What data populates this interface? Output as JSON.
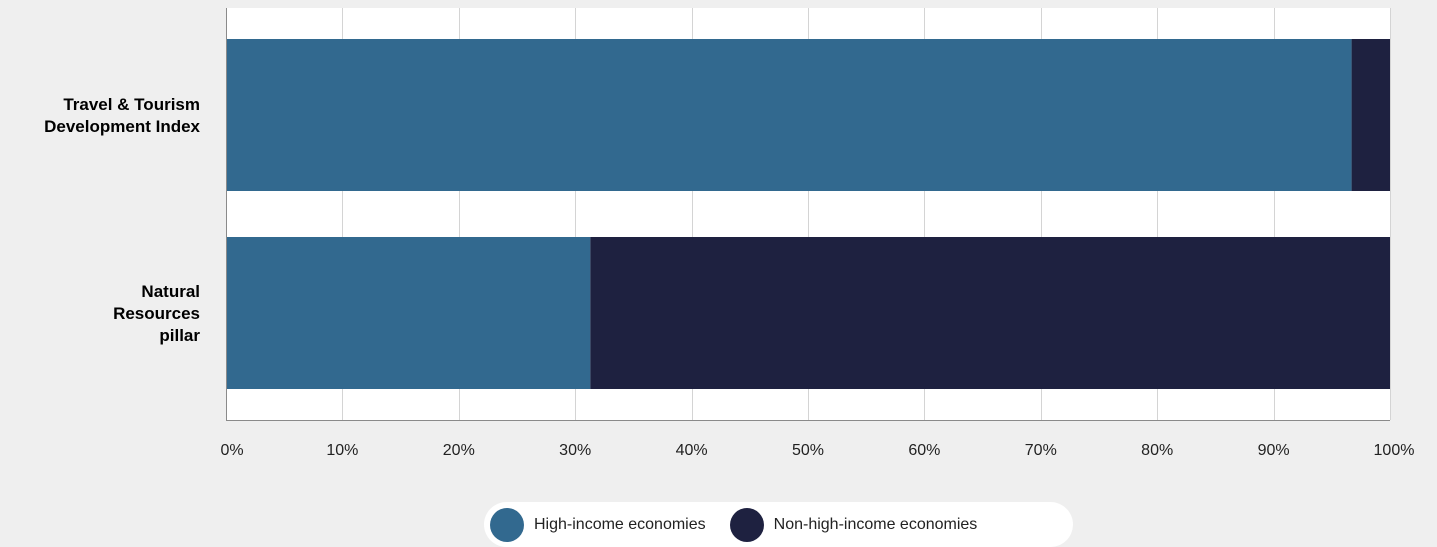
{
  "chart_data": {
    "type": "bar",
    "orientation": "horizontal",
    "stacked": true,
    "categories": [
      "Travel & Tourism\nDevelopment Index",
      "Natural\nResources\npillar"
    ],
    "series": [
      {
        "name": "High-income economies",
        "color": "#32698f",
        "values": [
          96.7,
          31.3
        ]
      },
      {
        "name": "Non-high-income economies",
        "color": "#1e2140",
        "values": [
          3.3,
          68.7
        ]
      }
    ],
    "xlim": [
      0,
      100
    ],
    "x_ticks": [
      "0%",
      "10%",
      "20%",
      "30%",
      "40%",
      "50%",
      "60%",
      "70%",
      "80%",
      "90%",
      "100%"
    ],
    "grid": true,
    "legend_position": "bottom"
  },
  "legend": {
    "items": [
      {
        "label": "High-income economies",
        "color": "#32698f"
      },
      {
        "label": "Non-high-income economies",
        "color": "#1e2140"
      }
    ]
  }
}
